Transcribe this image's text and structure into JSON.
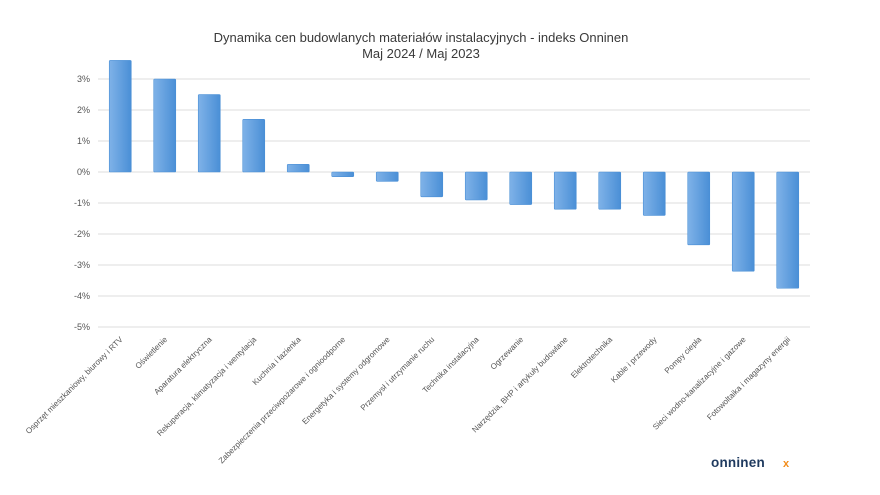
{
  "chart_data": {
    "type": "bar",
    "title": "Dynamika cen budowlanych materiałów instalacyjnych - indeks Onninen",
    "subtitle": "Maj 2024 / Maj 2023",
    "xlabel": "",
    "ylabel": "",
    "ylim": [
      -5,
      4
    ],
    "y_ticks": [
      3,
      2,
      1,
      0,
      -1,
      -2,
      -3,
      -4,
      -5
    ],
    "y_tick_labels": [
      "3%",
      "2%",
      "1%",
      "0%",
      "-1%",
      "-2%",
      "-3%",
      "-4%",
      "-5%"
    ],
    "grid": true,
    "legend": "none",
    "bar_color": "#4a8fd6",
    "bar_color_light": "#7fb2e8",
    "categories": [
      "Osprzęt mieszkaniowy, biurowy i RTV",
      "Oświetlenie",
      "Aparatura elektryczna",
      "Rekuperacja, klimatyzacja i wentylacja",
      "Kuchnia i łazienka",
      "Zabezpieczenia przeciwpożarowe i ognioodporne",
      "Energetyka i systemy odgromowe",
      "Przemysł i utrzymanie ruchu",
      "Technika instalacyjna",
      "Ogrzewanie",
      "Narzędzia, BHP i artykuły budowlane",
      "Elektrotechnika",
      "Kable i przewody",
      "Pompy ciepła",
      "Sieci wodno-kanalizacyjne i gazowe",
      "Fotowoltaika i magazyny energii"
    ],
    "values": [
      3.6,
      3.0,
      2.5,
      1.7,
      0.25,
      -0.15,
      -0.3,
      -0.8,
      -0.9,
      -1.05,
      -1.2,
      -1.2,
      -1.4,
      -2.35,
      -3.2,
      -3.75
    ]
  },
  "brand": {
    "logo_text": "onninen",
    "logo_color": "#1f3a5f",
    "logo_mark_color": "#f28c1a"
  }
}
